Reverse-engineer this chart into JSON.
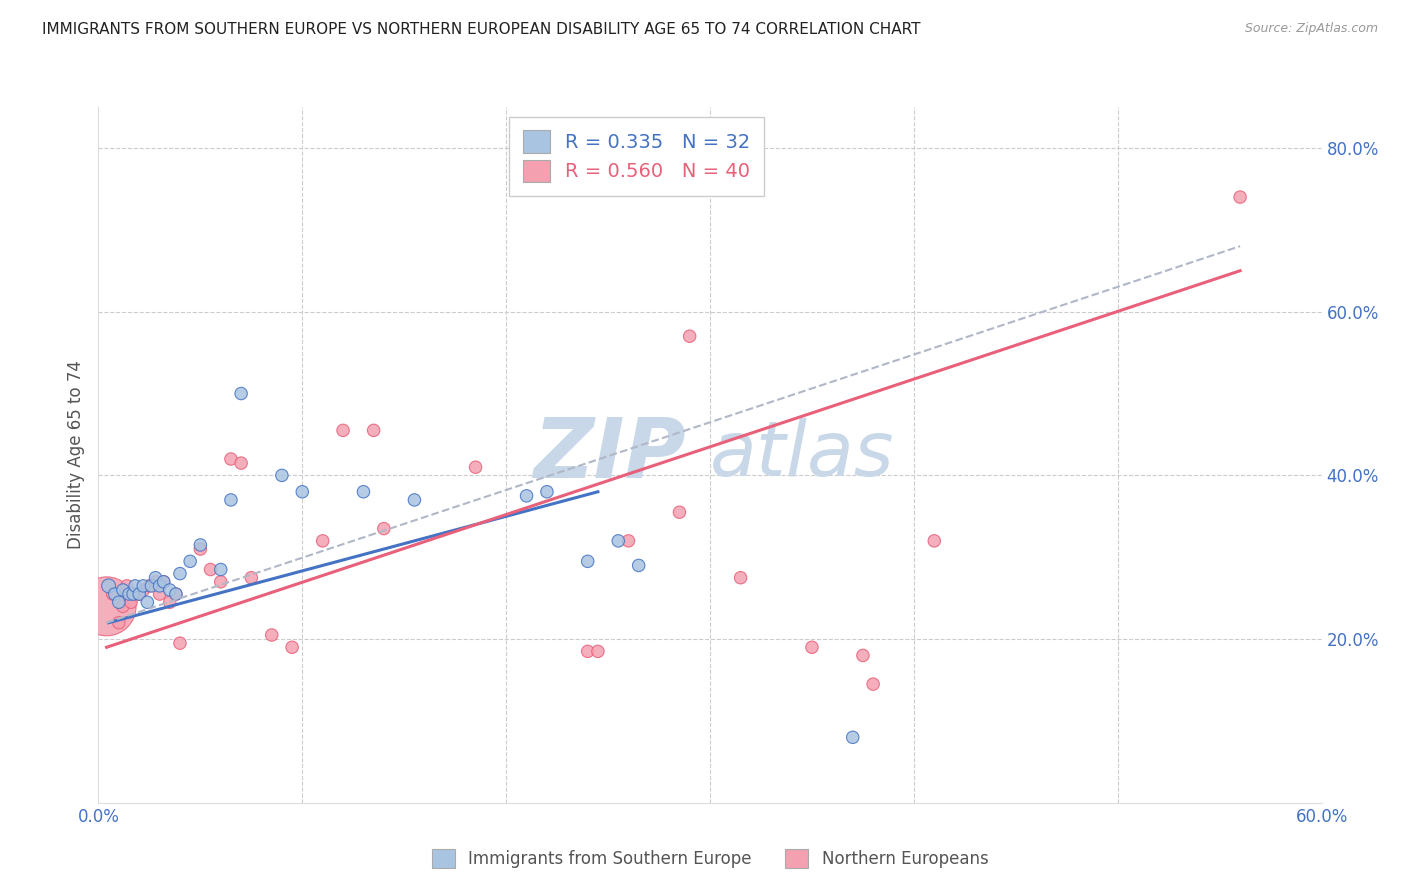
{
  "title": "IMMIGRANTS FROM SOUTHERN EUROPE VS NORTHERN EUROPEAN DISABILITY AGE 65 TO 74 CORRELATION CHART",
  "source": "Source: ZipAtlas.com",
  "ylabel": "Disability Age 65 to 74",
  "legend_label1": "Immigrants from Southern Europe",
  "legend_label2": "Northern Europeans",
  "R1": 0.335,
  "N1": 32,
  "R2": 0.56,
  "N2": 40,
  "xlim": [
    0.0,
    0.6
  ],
  "ylim": [
    0.0,
    0.85
  ],
  "xticks": [
    0.0,
    0.1,
    0.2,
    0.3,
    0.4,
    0.5,
    0.6
  ],
  "xtick_labels": [
    "0.0%",
    "",
    "",
    "",
    "",
    "",
    "60.0%"
  ],
  "yticks_right": [
    0.2,
    0.4,
    0.6,
    0.8
  ],
  "ytick_labels_right": [
    "20.0%",
    "40.0%",
    "60.0%",
    "80.0%"
  ],
  "color_blue": "#a8c4e0",
  "color_pink": "#f4a0b0",
  "color_blue_line": "#4472c4",
  "color_pink_line": "#e8607a",
  "color_dashed": "#b0b8c8",
  "watermark_color": "#c8d8e8",
  "background_color": "#ffffff",
  "blue_x": [
    0.005,
    0.008,
    0.01,
    0.012,
    0.015,
    0.017,
    0.018,
    0.02,
    0.022,
    0.024,
    0.026,
    0.028,
    0.03,
    0.032,
    0.035,
    0.038,
    0.04,
    0.045,
    0.05,
    0.06,
    0.065,
    0.07,
    0.09,
    0.1,
    0.13,
    0.155,
    0.21,
    0.22,
    0.24,
    0.255,
    0.265,
    0.37
  ],
  "blue_y": [
    0.265,
    0.255,
    0.245,
    0.26,
    0.255,
    0.255,
    0.265,
    0.255,
    0.265,
    0.245,
    0.265,
    0.275,
    0.265,
    0.27,
    0.26,
    0.255,
    0.28,
    0.295,
    0.315,
    0.285,
    0.37,
    0.5,
    0.4,
    0.38,
    0.38,
    0.37,
    0.375,
    0.38,
    0.295,
    0.32,
    0.29,
    0.08
  ],
  "blue_sizes": [
    100,
    80,
    80,
    80,
    80,
    80,
    80,
    80,
    80,
    80,
    80,
    80,
    80,
    80,
    80,
    80,
    80,
    80,
    80,
    80,
    80,
    80,
    80,
    80,
    80,
    80,
    80,
    80,
    80,
    80,
    80,
    80
  ],
  "pink_x": [
    0.004,
    0.007,
    0.01,
    0.012,
    0.014,
    0.016,
    0.018,
    0.02,
    0.022,
    0.025,
    0.028,
    0.03,
    0.032,
    0.035,
    0.038,
    0.04,
    0.05,
    0.055,
    0.06,
    0.065,
    0.07,
    0.075,
    0.085,
    0.095,
    0.11,
    0.12,
    0.135,
    0.14,
    0.185,
    0.24,
    0.245,
    0.26,
    0.285,
    0.29,
    0.315,
    0.35,
    0.375,
    0.38,
    0.41,
    0.56
  ],
  "pink_y": [
    0.24,
    0.255,
    0.22,
    0.24,
    0.265,
    0.245,
    0.255,
    0.255,
    0.26,
    0.265,
    0.27,
    0.255,
    0.27,
    0.245,
    0.255,
    0.195,
    0.31,
    0.285,
    0.27,
    0.42,
    0.415,
    0.275,
    0.205,
    0.19,
    0.32,
    0.455,
    0.455,
    0.335,
    0.41,
    0.185,
    0.185,
    0.32,
    0.355,
    0.57,
    0.275,
    0.19,
    0.18,
    0.145,
    0.32,
    0.74
  ],
  "pink_sizes": [
    1800,
    80,
    80,
    80,
    80,
    80,
    80,
    80,
    80,
    80,
    80,
    80,
    80,
    80,
    80,
    80,
    80,
    80,
    80,
    80,
    80,
    80,
    80,
    80,
    80,
    80,
    80,
    80,
    80,
    80,
    80,
    80,
    80,
    80,
    80,
    80,
    80,
    80,
    80,
    80
  ],
  "blue_line_x": [
    0.005,
    0.245
  ],
  "blue_line_y": [
    0.22,
    0.38
  ],
  "pink_line_x": [
    0.004,
    0.56
  ],
  "pink_line_y": [
    0.19,
    0.65
  ],
  "dashed_line_x": [
    0.004,
    0.56
  ],
  "dashed_line_y": [
    0.22,
    0.68
  ]
}
